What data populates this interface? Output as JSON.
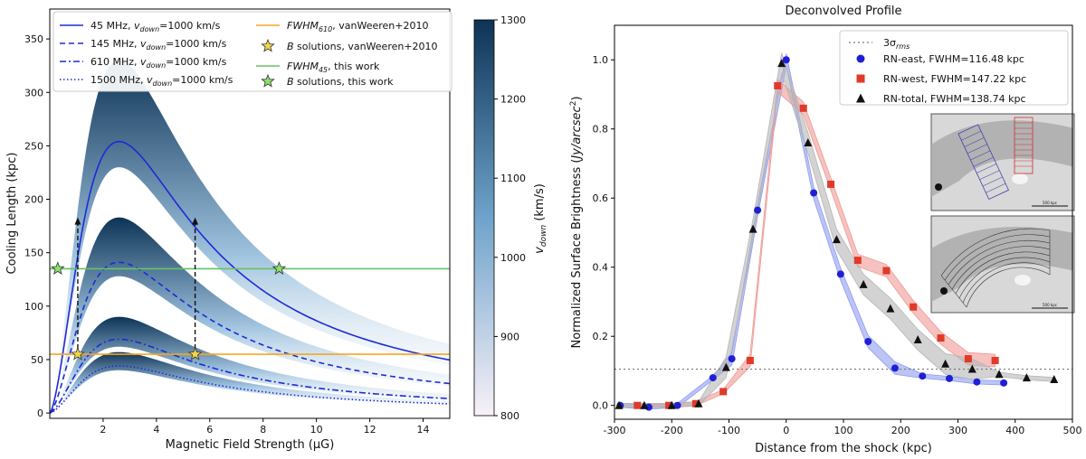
{
  "chart_data": [
    {
      "type": "line",
      "title": "",
      "xlabel": "Magnetic Field Strength (μG)",
      "ylabel": "Cooling Length (kpc)",
      "xlim": [
        0,
        15
      ],
      "ylim": [
        -5,
        378
      ],
      "xticks": [
        2,
        4,
        6,
        8,
        10,
        12,
        14
      ],
      "yticks": [
        0,
        50,
        100,
        150,
        200,
        250,
        300,
        350
      ],
      "series": [
        {
          "name": "45 MHz, v_down=1000 km/s",
          "label_prefix": "45 MHz, ",
          "style": "solid",
          "peak_x": 2.6,
          "peak_y": 254
        },
        {
          "name": "145 MHz, v_down=1000 km/s",
          "label_prefix": "145 MHz, ",
          "style": "dashed",
          "peak_x": 2.6,
          "peak_y": 141
        },
        {
          "name": "610 MHz, v_down=1000 km/s",
          "label_prefix": "610 MHz, ",
          "style": "dashdot",
          "peak_x": 2.6,
          "peak_y": 69
        },
        {
          "name": "1500 MHz, v_down=1000 km/s",
          "label_prefix": "1500 MHz, ",
          "style": "dotted",
          "peak_x": 2.6,
          "peak_y": 44
        }
      ],
      "bands": [
        {
          "peak_y_low": 230,
          "peak_y_high": 330
        },
        {
          "peak_y_low": 128,
          "peak_y_high": 183
        },
        {
          "peak_y_low": 62,
          "peak_y_high": 90
        },
        {
          "peak_y_low": 40,
          "peak_y_high": 57
        }
      ],
      "hlines": [
        {
          "name": "FWHM610, vanWeeren+2010",
          "y": 55,
          "color": "#f5a623"
        },
        {
          "name": "FWHM45, this work",
          "y": 135,
          "color": "#66c266"
        }
      ],
      "points": [
        {
          "group": "B solutions, vanWeeren+2010",
          "x": 1.05,
          "y": 55
        },
        {
          "group": "B solutions, vanWeeren+2010",
          "x": 5.45,
          "y": 55
        },
        {
          "group": "B solutions, this work",
          "x": 0.3,
          "y": 135
        },
        {
          "group": "B solutions, this work",
          "x": 8.6,
          "y": 135
        }
      ],
      "arrows": [
        {
          "x": 1.05,
          "y_from": 55,
          "y_to": 183
        },
        {
          "x": 5.45,
          "y_from": 55,
          "y_to": 183
        }
      ],
      "colorbar": {
        "label_main": "v",
        "label_sub": "down",
        "label_unit": " (km/s)",
        "range": [
          800,
          1300
        ],
        "ticks": [
          800,
          900,
          1000,
          1100,
          1200,
          1300
        ],
        "color_low": "#f8f1f8",
        "color_mid": "#6fa3cb",
        "color_high": "#0d3356"
      },
      "legend": {
        "v_main": "v",
        "v_sub": "down",
        "v_value": "=1000 km/s",
        "fwhm610_main": "FWHM",
        "fwhm610_sub": "610",
        "fwhm610_suffix": ", vanWeeren+2010",
        "bsol_main": "B",
        "bsol_vw_suffix": " solutions, vanWeeren+2010",
        "fwhm45_main": "FWHM",
        "fwhm45_sub": "45",
        "fwhm45_suffix": ", this work",
        "bsol_tw_suffix": " solutions, this work"
      }
    },
    {
      "type": "scatter",
      "title": "Deconvolved Profile",
      "xlabel": "Distance from the shock (kpc)",
      "ylabel_prefix": "Normalized Surface Brightness (",
      "ylabel_unit_main": "Jy/arcsec",
      "ylabel_unit_sup": "2",
      "ylabel_suffix": ")",
      "xlim": [
        -300,
        500
      ],
      "ylim": [
        -0.04,
        1.1
      ],
      "xticks": [
        -300,
        -200,
        -100,
        0,
        100,
        200,
        300,
        400,
        500
      ],
      "yticks": [
        0.0,
        0.2,
        0.4,
        0.6,
        0.8,
        1.0
      ],
      "threshold": {
        "main": "3σ",
        "sub": "rms",
        "y": 0.105
      },
      "series": [
        {
          "name": "RN-east, FWHM=116.48 kpc",
          "marker": "circle",
          "color": "#1f1fd6",
          "band_color": "#8f9cf0",
          "x": [
            -290,
            -240,
            -190,
            -128,
            -95,
            -50,
            0,
            48,
            95,
            143,
            190,
            238,
            285,
            333,
            380
          ],
          "y": [
            0.0,
            -0.005,
            0.0,
            0.08,
            0.135,
            0.565,
            1.0,
            0.615,
            0.38,
            0.185,
            0.108,
            0.085,
            0.078,
            0.068,
            0.065
          ]
        },
        {
          "name": "RN-west, FWHM=147.22 kpc",
          "marker": "square",
          "color": "#e03a2a",
          "band_color": "#ee9a94",
          "x": [
            -260,
            -205,
            -158,
            -110,
            -63,
            -15,
            30,
            78,
            125,
            175,
            222,
            270,
            318,
            365
          ],
          "y": [
            0.0,
            0.0,
            0.005,
            0.04,
            0.13,
            0.925,
            0.86,
            0.64,
            0.42,
            0.39,
            0.285,
            0.195,
            0.135,
            0.13
          ]
        },
        {
          "name": "RN-total, FWHM=138.74 kpc",
          "marker": "triangle",
          "color": "#111111",
          "band_color": "#b5b5b5",
          "x": [
            -292,
            -248,
            -200,
            -153,
            -105,
            -58,
            -8,
            38,
            88,
            135,
            182,
            230,
            278,
            325,
            372,
            420,
            468
          ],
          "y": [
            0.0,
            0.0,
            0.0,
            0.005,
            0.11,
            0.51,
            0.99,
            0.76,
            0.48,
            0.35,
            0.28,
            0.19,
            0.12,
            0.105,
            0.09,
            0.08,
            0.075
          ]
        }
      ],
      "insets": [
        {
          "caption": "500 kpc"
        },
        {
          "caption": "500 kpc"
        }
      ]
    }
  ]
}
